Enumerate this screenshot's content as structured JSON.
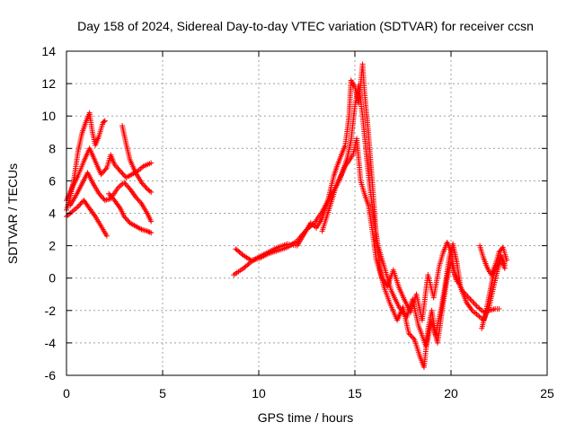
{
  "chart_data": {
    "type": "scatter",
    "title": "Day 158 of 2024, Sidereal Day-to-day VTEC variation (SDTVAR) for receiver ccsn",
    "xlabel": "GPS time / hours",
    "ylabel": "SDTVAR / TECUs",
    "xlim": [
      0,
      25
    ],
    "ylim": [
      -6,
      14
    ],
    "x_ticks": [
      "0",
      "5",
      "10",
      "15",
      "20",
      "25"
    ],
    "y_ticks": [
      "-6",
      "-4",
      "-2",
      "0",
      "2",
      "4",
      "6",
      "8",
      "10",
      "12",
      "14"
    ],
    "grid": true,
    "marker": "+",
    "series": [
      {
        "name": "SDTVAR",
        "color": "#ff0000",
        "polylines": [
          [
            [
              0.0,
              4.2
            ],
            [
              0.2,
              5.0
            ],
            [
              0.4,
              6.2
            ],
            [
              0.6,
              7.8
            ],
            [
              0.8,
              8.9
            ],
            [
              1.0,
              9.6
            ],
            [
              1.2,
              10.2
            ],
            [
              1.35,
              9.0
            ],
            [
              1.5,
              8.2
            ],
            [
              1.7,
              8.8
            ],
            [
              1.9,
              9.6
            ],
            [
              2.0,
              9.7
            ]
          ],
          [
            [
              0.0,
              4.8
            ],
            [
              0.3,
              5.6
            ],
            [
              0.6,
              6.3
            ],
            [
              0.9,
              7.2
            ],
            [
              1.2,
              8.0
            ],
            [
              1.5,
              7.2
            ],
            [
              1.8,
              6.4
            ],
            [
              2.1,
              6.8
            ],
            [
              2.3,
              7.6
            ],
            [
              2.5,
              7.0
            ],
            [
              2.8,
              6.6
            ],
            [
              3.1,
              6.2
            ],
            [
              3.4,
              6.4
            ],
            [
              3.7,
              6.6
            ],
            [
              4.0,
              6.9
            ],
            [
              4.4,
              7.1
            ]
          ],
          [
            [
              0.2,
              4.5
            ],
            [
              0.5,
              5.1
            ],
            [
              0.8,
              5.8
            ],
            [
              1.1,
              6.5
            ],
            [
              1.4,
              5.8
            ],
            [
              1.7,
              5.2
            ],
            [
              2.0,
              4.8
            ],
            [
              2.3,
              4.9
            ],
            [
              2.7,
              5.6
            ],
            [
              3.0,
              5.9
            ],
            [
              3.3,
              5.5
            ],
            [
              3.6,
              5.0
            ],
            [
              3.9,
              4.6
            ],
            [
              4.2,
              4.0
            ],
            [
              4.4,
              3.5
            ]
          ],
          [
            [
              0.0,
              3.8
            ],
            [
              0.3,
              4.1
            ],
            [
              0.6,
              4.4
            ],
            [
              0.9,
              4.8
            ],
            [
              1.2,
              4.3
            ],
            [
              1.5,
              3.8
            ],
            [
              1.8,
              3.2
            ],
            [
              2.0,
              2.8
            ],
            [
              2.1,
              2.6
            ]
          ],
          [
            [
              2.2,
              5.2
            ],
            [
              2.5,
              4.8
            ],
            [
              2.8,
              4.3
            ],
            [
              3.0,
              3.8
            ],
            [
              3.3,
              3.4
            ],
            [
              3.6,
              3.2
            ],
            [
              3.9,
              3.0
            ],
            [
              4.2,
              2.9
            ],
            [
              4.4,
              2.8
            ]
          ],
          [
            [
              2.9,
              9.4
            ],
            [
              3.1,
              8.3
            ],
            [
              3.3,
              7.3
            ],
            [
              3.6,
              6.5
            ],
            [
              3.9,
              5.9
            ],
            [
              4.2,
              5.5
            ],
            [
              4.4,
              5.3
            ]
          ],
          [
            [
              8.7,
              0.2
            ],
            [
              9.2,
              0.6
            ],
            [
              9.6,
              1.0
            ],
            [
              10.0,
              1.3
            ],
            [
              10.5,
              1.6
            ],
            [
              11.0,
              1.9
            ],
            [
              11.5,
              2.1
            ],
            [
              12.0,
              2.0
            ],
            [
              12.3,
              2.6
            ],
            [
              12.7,
              3.4
            ],
            [
              13.0,
              3.1
            ],
            [
              13.3,
              3.7
            ],
            [
              13.6,
              4.8
            ],
            [
              13.9,
              6.3
            ],
            [
              14.1,
              7.0
            ],
            [
              14.3,
              7.6
            ],
            [
              14.5,
              8.2
            ],
            [
              14.7,
              10.0
            ],
            [
              14.8,
              12.2
            ],
            [
              15.0,
              11.8
            ],
            [
              15.2,
              10.8
            ],
            [
              15.4,
              13.2
            ],
            [
              15.5,
              11.5
            ],
            [
              15.7,
              9.0
            ],
            [
              15.9,
              6.0
            ],
            [
              16.1,
              2.8
            ],
            [
              16.3,
              0.6
            ],
            [
              16.5,
              -0.5
            ],
            [
              16.8,
              -1.5
            ],
            [
              17.2,
              -2.6
            ],
            [
              17.5,
              -1.8
            ],
            [
              17.8,
              -3.4
            ],
            [
              18.1,
              -3.8
            ],
            [
              18.4,
              -4.9
            ],
            [
              18.6,
              -5.5
            ],
            [
              18.8,
              -3.2
            ],
            [
              19.0,
              -2.0
            ],
            [
              19.2,
              -3.5
            ],
            [
              19.5,
              -1.8
            ],
            [
              19.7,
              -0.4
            ],
            [
              19.9,
              1.2
            ],
            [
              20.1,
              2.1
            ],
            [
              20.3,
              1.0
            ],
            [
              20.5,
              -0.6
            ],
            [
              20.8,
              -1.5
            ],
            [
              21.1,
              -2.0
            ],
            [
              21.4,
              -2.3
            ],
            [
              21.7,
              -2.6
            ],
            [
              22.0,
              -1.7
            ],
            [
              22.2,
              -0.6
            ],
            [
              22.4,
              0.4
            ],
            [
              22.6,
              1.2
            ],
            [
              22.8,
              0.6
            ]
          ],
          [
            [
              8.8,
              1.8
            ],
            [
              9.2,
              1.4
            ],
            [
              9.6,
              1.1
            ],
            [
              10.0,
              1.2
            ],
            [
              10.5,
              1.5
            ],
            [
              11.0,
              1.7
            ],
            [
              11.5,
              1.9
            ],
            [
              12.0,
              2.3
            ],
            [
              12.5,
              3.0
            ],
            [
              12.9,
              3.4
            ],
            [
              13.3,
              4.1
            ],
            [
              13.7,
              5.0
            ],
            [
              14.1,
              5.8
            ],
            [
              14.5,
              6.9
            ],
            [
              14.9,
              7.6
            ],
            [
              15.1,
              8.6
            ],
            [
              15.3,
              6.0
            ],
            [
              15.5,
              5.2
            ],
            [
              15.7,
              4.5
            ],
            [
              15.9,
              3.0
            ],
            [
              16.1,
              1.2
            ],
            [
              16.4,
              0.0
            ],
            [
              16.7,
              -0.5
            ],
            [
              17.0,
              0.5
            ],
            [
              17.3,
              -0.6
            ],
            [
              17.6,
              -1.4
            ],
            [
              17.9,
              -2.1
            ],
            [
              18.2,
              -1.0
            ],
            [
              18.5,
              -2.6
            ],
            [
              18.8,
              0.2
            ],
            [
              19.1,
              -1.2
            ],
            [
              19.4,
              0.8
            ],
            [
              19.6,
              1.6
            ],
            [
              19.8,
              2.2
            ],
            [
              20.0,
              1.7
            ],
            [
              20.2,
              0.2
            ],
            [
              20.6,
              -0.8
            ],
            [
              21.0,
              -1.3
            ],
            [
              21.4,
              -1.8
            ],
            [
              21.7,
              -2.1
            ],
            [
              22.0,
              -2.0
            ],
            [
              22.3,
              -1.9
            ],
            [
              22.5,
              -1.9
            ]
          ],
          [
            [
              13.3,
              2.9
            ],
            [
              13.7,
              4.4
            ],
            [
              14.0,
              5.6
            ],
            [
              14.3,
              6.4
            ],
            [
              14.6,
              7.4
            ],
            [
              14.8,
              8.5
            ],
            [
              15.0,
              10.6
            ],
            [
              15.2,
              11.9
            ],
            [
              15.4,
              10.0
            ],
            [
              15.6,
              7.6
            ],
            [
              15.8,
              5.4
            ],
            [
              16.0,
              3.6
            ],
            [
              16.2,
              2.0
            ],
            [
              16.5,
              0.8
            ],
            [
              16.9,
              -0.8
            ],
            [
              17.3,
              -1.8
            ],
            [
              17.7,
              -2.4
            ],
            [
              18.0,
              -1.3
            ],
            [
              18.3,
              -2.9
            ],
            [
              18.7,
              -4.2
            ],
            [
              19.0,
              -2.7
            ],
            [
              19.3,
              -4.0
            ],
            [
              19.6,
              -1.5
            ],
            [
              19.8,
              0.0
            ],
            [
              20.0,
              1.0
            ],
            [
              20.3,
              -0.2
            ]
          ],
          [
            [
              21.6,
              -3.1
            ],
            [
              21.8,
              -2.2
            ],
            [
              22.0,
              -1.0
            ],
            [
              22.2,
              0.2
            ],
            [
              22.4,
              0.8
            ],
            [
              22.6,
              1.4
            ],
            [
              22.8,
              0.8
            ]
          ],
          [
            [
              21.5,
              2.0
            ],
            [
              21.7,
              1.2
            ],
            [
              21.9,
              0.6
            ],
            [
              22.1,
              0.2
            ],
            [
              22.3,
              0.8
            ],
            [
              22.5,
              1.6
            ],
            [
              22.7,
              1.9
            ],
            [
              22.9,
              1.1
            ]
          ]
        ]
      }
    ]
  }
}
